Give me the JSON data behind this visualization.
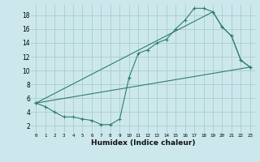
{
  "xlabel": "Humidex (Indice chaleur)",
  "ylabel": "",
  "background_color": "#cde8ec",
  "grid_color": "#aacccc",
  "line_color": "#2e7d6e",
  "xlim": [
    -0.5,
    23.5
  ],
  "ylim": [
    1,
    19.5
  ],
  "xticks": [
    0,
    1,
    2,
    3,
    4,
    5,
    6,
    7,
    8,
    9,
    10,
    11,
    12,
    13,
    14,
    15,
    16,
    17,
    18,
    19,
    20,
    21,
    22,
    23
  ],
  "yticks": [
    2,
    4,
    6,
    8,
    10,
    12,
    14,
    16,
    18
  ],
  "line1_x": [
    0,
    1,
    2,
    3,
    4,
    5,
    6,
    7,
    8,
    9,
    10,
    11,
    12,
    13,
    14,
    15,
    16,
    17,
    18,
    19,
    20,
    21,
    22,
    23
  ],
  "line1_y": [
    5.3,
    4.8,
    4.0,
    3.3,
    3.3,
    3.0,
    2.8,
    2.2,
    2.2,
    3.0,
    9.0,
    12.5,
    13.0,
    14.0,
    14.5,
    16.0,
    17.3,
    19.0,
    19.0,
    18.5,
    16.3,
    15.0,
    11.5,
    10.5
  ],
  "line2_x": [
    0,
    19,
    20,
    21,
    22,
    23
  ],
  "line2_y": [
    5.3,
    18.5,
    16.3,
    15.0,
    11.5,
    10.5
  ],
  "line3_x": [
    0,
    23
  ],
  "line3_y": [
    5.3,
    10.5
  ]
}
